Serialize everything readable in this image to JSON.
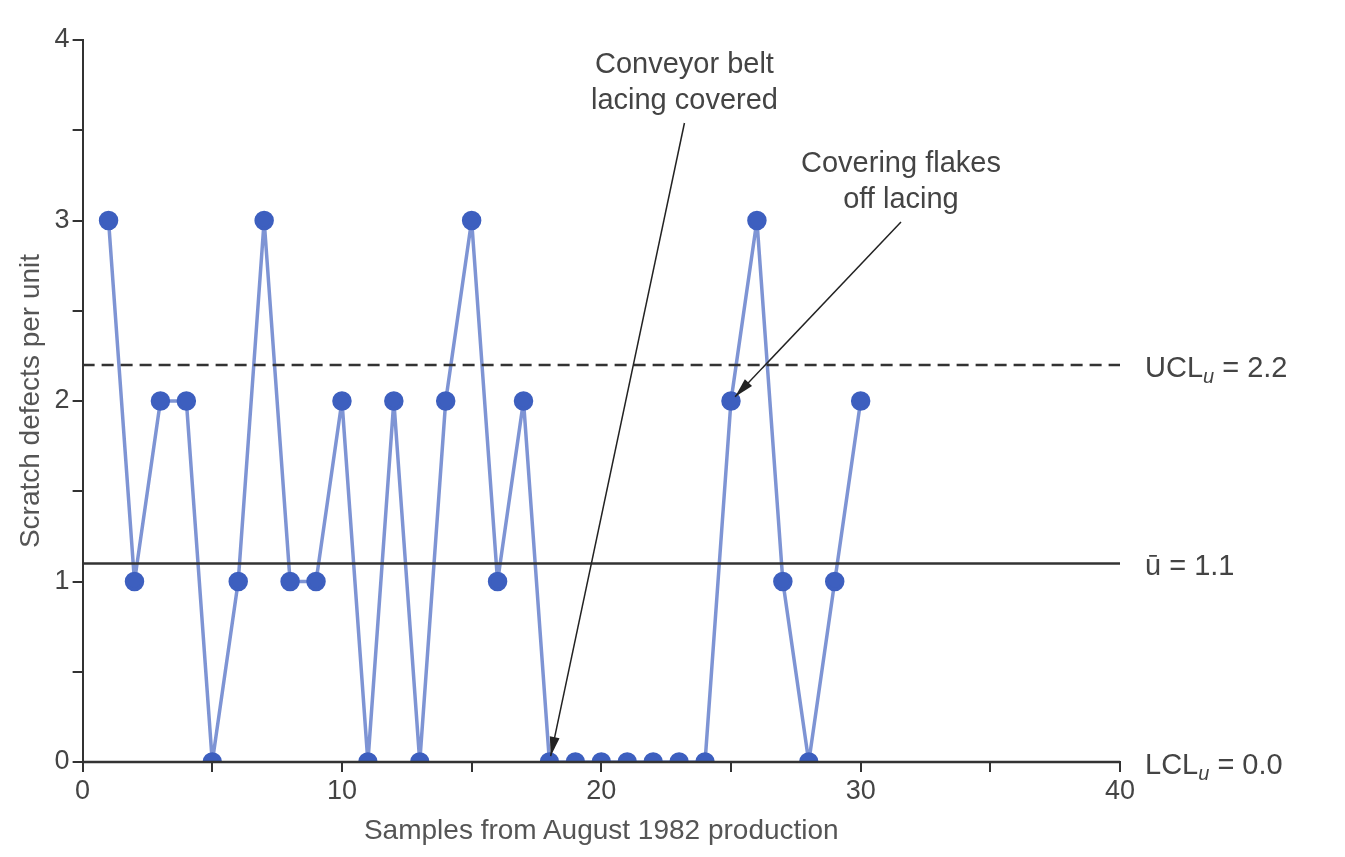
{
  "chart_data": {
    "type": "line",
    "xlabel": "Samples from August 1982 production",
    "ylabel": "Scratch defects per unit",
    "x": [
      1,
      2,
      3,
      4,
      5,
      6,
      7,
      8,
      9,
      10,
      11,
      12,
      13,
      14,
      15,
      16,
      17,
      18,
      19,
      20,
      21,
      22,
      23,
      24,
      25,
      26,
      27,
      28,
      29,
      30
    ],
    "series": [
      {
        "color": "#3d5fbf",
        "values": [
          3,
          1,
          2,
          2,
          0,
          1,
          3,
          1,
          1,
          2,
          0,
          2,
          0,
          2,
          3,
          1,
          2,
          0,
          0,
          0,
          0,
          0,
          0,
          0,
          2,
          3,
          1,
          0,
          1,
          2
        ]
      }
    ],
    "marker": "circle",
    "line_style": "solid",
    "xlim": [
      0,
      40
    ],
    "xticks": [
      0,
      {
        "value": 5,
        "label": null
      },
      10,
      {
        "value": 15,
        "label": null
      },
      20,
      {
        "value": 25,
        "label": null
      },
      30,
      {
        "value": 35,
        "label": null
      },
      40
    ],
    "ylim": [
      0,
      4
    ],
    "yticks": [
      0,
      {
        "value": 0.5,
        "label": null
      },
      1,
      {
        "value": 1.5,
        "label": null
      },
      2,
      {
        "value": 2.5,
        "label": null
      },
      3,
      {
        "value": 3.5,
        "label": null
      },
      4
    ],
    "ref_lines": [
      {
        "axis": "y",
        "value": 2.2,
        "label": "UCL$_{u}$ = 2.2",
        "line_style": "dashed",
        "color": "#333333"
      },
      {
        "axis": "y",
        "value": 1.1,
        "label": "ū = 1.1",
        "line_style": "solid",
        "color": "#333333"
      },
      {
        "axis": "y",
        "value": 0,
        "label": "LCL$_{u}$ = 0.0",
        "line_style": "solid",
        "color": "#333333"
      }
    ],
    "annotations": [
      {
        "text": "Conveyor belt\nlacing covered",
        "x": 18,
        "y": 0
      },
      {
        "text": "Covering flakes\noff lacing",
        "x": 25,
        "y": 2
      }
    ],
    "grid": false,
    "legend": false
  }
}
